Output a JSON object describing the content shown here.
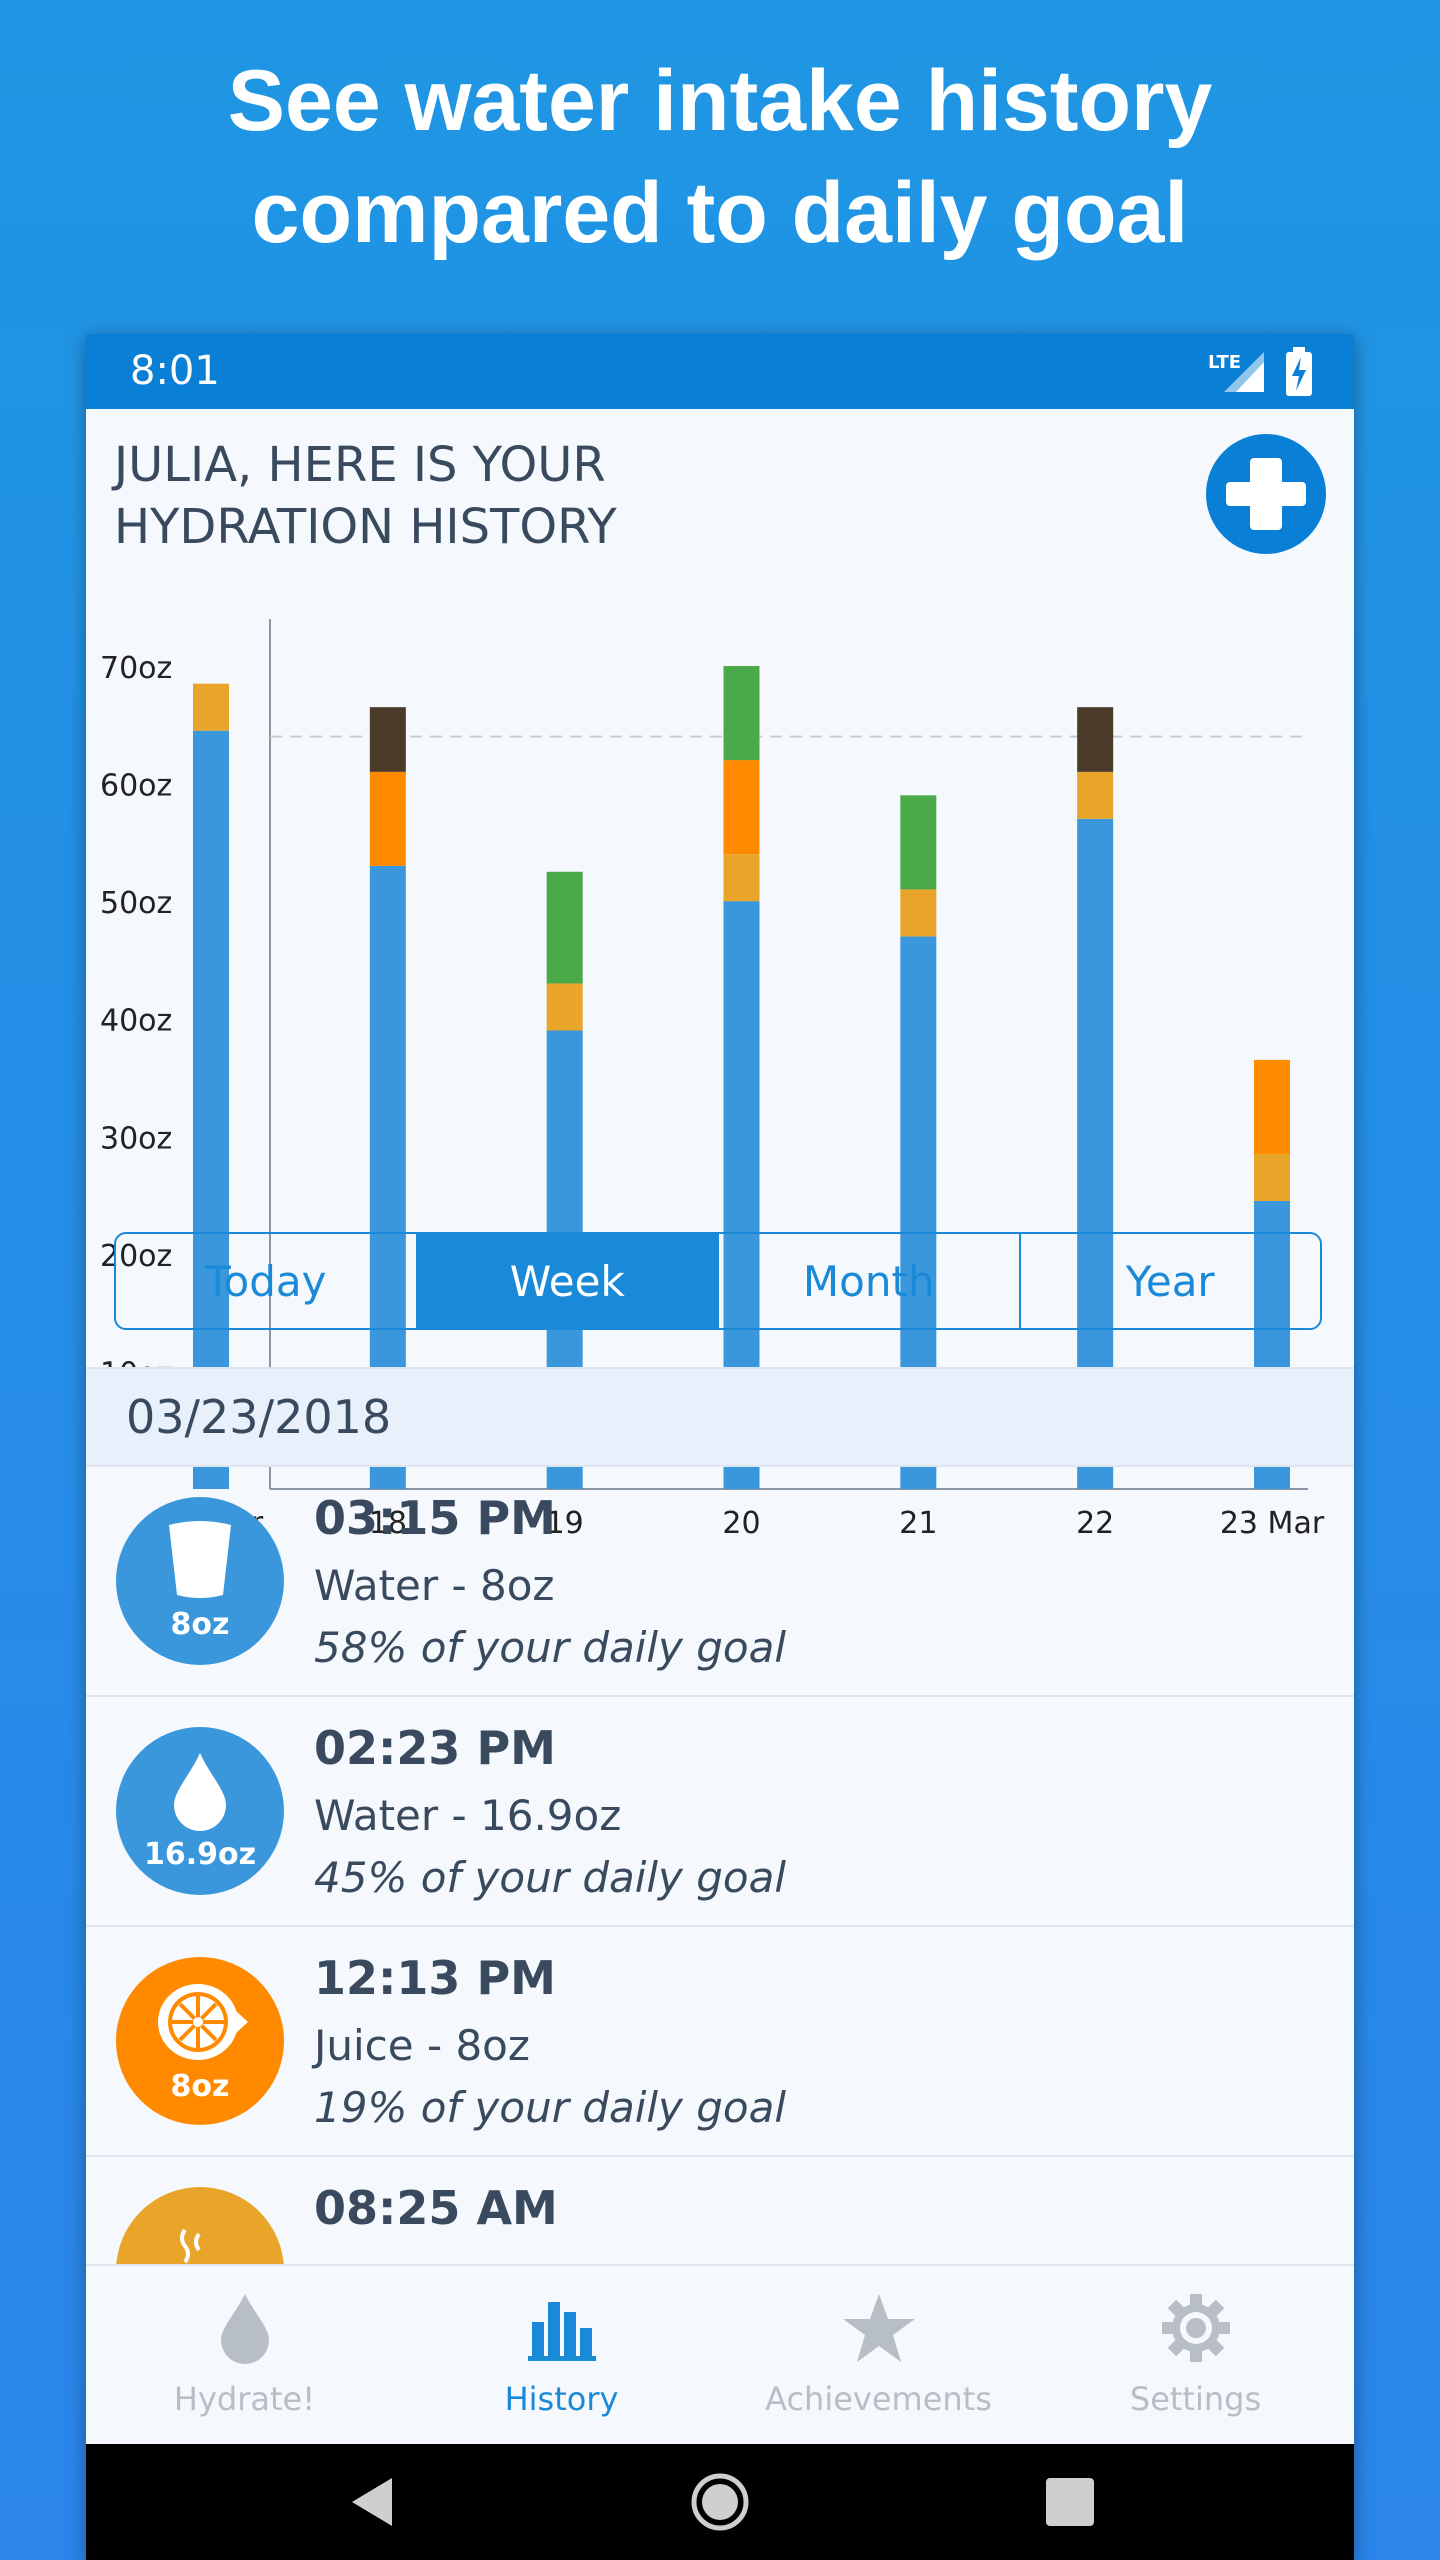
{
  "promo": {
    "line1": "See water intake history",
    "line2": "compared to daily goal"
  },
  "status_bar": {
    "time": "8:01",
    "network": "LTE"
  },
  "header": {
    "title": "JULIA, HERE IS YOUR\nHYDRATION HISTORY",
    "add_icon": "plus-icon"
  },
  "chart_data": {
    "type": "bar",
    "stacked": true,
    "categories": [
      "17 Mar",
      "18",
      "19",
      "20",
      "21",
      "22",
      "23 Mar"
    ],
    "y_tick_labels": [
      "10oz",
      "20oz",
      "30oz",
      "40oz",
      "50oz",
      "60oz",
      "70oz"
    ],
    "ylim": [
      0,
      74
    ],
    "goal_line": 64,
    "series": [
      {
        "color": "#3a97dc",
        "values": [
          64.5,
          53,
          39,
          50,
          47,
          57,
          24.5
        ]
      },
      {
        "color": "#e9a52a",
        "values": [
          4,
          0,
          4,
          4,
          4,
          4,
          4
        ]
      },
      {
        "color": "#ff8a00",
        "values": [
          0,
          8,
          0,
          8,
          0,
          0,
          8
        ]
      },
      {
        "color": "#4aaa4a",
        "values": [
          0,
          0,
          9.5,
          8,
          8,
          0,
          0
        ]
      },
      {
        "color": "#4a3a28",
        "values": [
          0,
          5.5,
          0,
          0,
          0,
          5.5,
          0
        ]
      }
    ]
  },
  "segments": {
    "items": [
      "Today",
      "Week",
      "Month",
      "Year"
    ],
    "active": "Week"
  },
  "history": {
    "date": "03/23/2018",
    "entries": [
      {
        "time": "03:15 PM",
        "desc": "Water - 8oz",
        "goal": "58% of your daily goal",
        "amount": "8oz",
        "icon": "cup-icon",
        "color": "#3a97dc"
      },
      {
        "time": "02:23 PM",
        "desc": "Water - 16.9oz",
        "goal": "45% of your daily goal",
        "amount": "16.9oz",
        "icon": "water-drop-icon",
        "color": "#3a97dc"
      },
      {
        "time": "12:13 PM",
        "desc": "Juice - 8oz",
        "goal": "19% of your daily goal",
        "amount": "8oz",
        "icon": "orange-slice-icon",
        "color": "#ff8a00"
      },
      {
        "time": "08:25 AM",
        "desc": "",
        "goal": "",
        "amount": "",
        "icon": "hot-drink-icon",
        "color": "#e9a52a"
      }
    ]
  },
  "tabs": [
    {
      "label": "Hydrate!",
      "icon": "drop-icon",
      "active": false
    },
    {
      "label": "History",
      "icon": "bar-chart-icon",
      "active": true
    },
    {
      "label": "Achievements",
      "icon": "star-icon",
      "active": false
    },
    {
      "label": "Settings",
      "icon": "gear-icon",
      "active": false
    }
  ],
  "colors": {
    "primary": "#0a7fd6",
    "accent_blue": "#1a8ad8",
    "text": "#3a4a5e",
    "inactive": "#b7bec6"
  }
}
